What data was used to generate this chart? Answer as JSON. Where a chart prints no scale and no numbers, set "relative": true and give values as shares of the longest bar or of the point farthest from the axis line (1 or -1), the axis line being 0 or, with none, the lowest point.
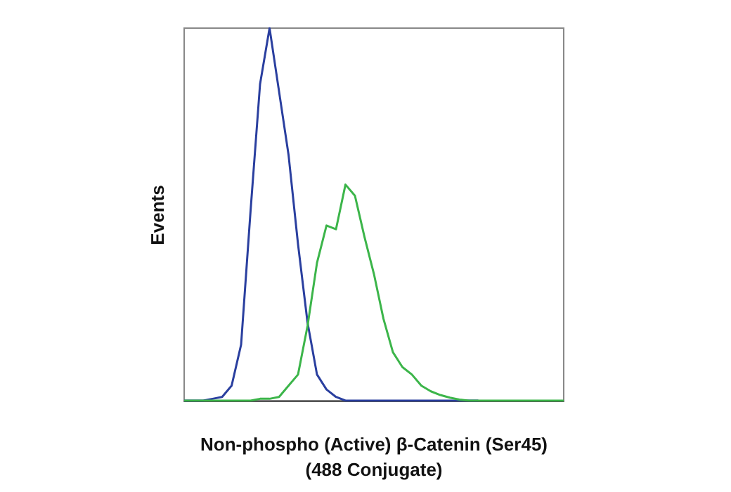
{
  "chart_data": {
    "type": "line",
    "relative": true,
    "xlabel": "Non-phospho (Active) β-Catenin (Ser45)\n(488 Conjugate)",
    "ylabel": "Events",
    "categories": [
      null,
      null,
      null,
      null,
      null,
      null,
      null,
      null,
      null,
      null,
      null,
      null,
      null,
      null,
      null,
      null,
      null,
      null,
      null,
      null,
      null,
      null,
      null,
      null,
      null,
      null,
      null,
      null,
      null,
      null,
      null,
      null,
      null,
      null,
      null,
      null,
      null,
      null,
      null,
      null,
      null
    ],
    "series": [
      {
        "color": "#2a3f9f",
        "values": [
          0,
          0,
          0,
          0.005,
          0.01,
          0.04,
          0.15,
          0.51,
          0.85,
          1.0,
          0.83,
          0.66,
          0.42,
          0.21,
          0.07,
          0.03,
          0.01,
          0,
          0,
          0,
          0,
          0,
          0,
          0,
          0,
          0,
          0,
          0,
          0,
          0,
          0,
          0,
          null,
          null,
          null,
          null,
          null,
          null,
          null,
          null,
          null
        ]
      },
      {
        "color": "#3cb54a",
        "values": [
          0,
          0,
          0,
          0,
          0,
          0,
          0,
          0,
          0.005,
          0.005,
          0.01,
          0.04,
          0.07,
          0.2,
          0.37,
          0.47,
          0.46,
          0.58,
          0.55,
          0.44,
          0.34,
          0.22,
          0.13,
          0.09,
          0.07,
          0.04,
          0.025,
          0.015,
          0.008,
          0.003,
          0,
          0,
          0,
          0,
          0,
          0,
          0,
          0,
          0,
          0,
          0
        ]
      }
    ],
    "grid": false
  }
}
